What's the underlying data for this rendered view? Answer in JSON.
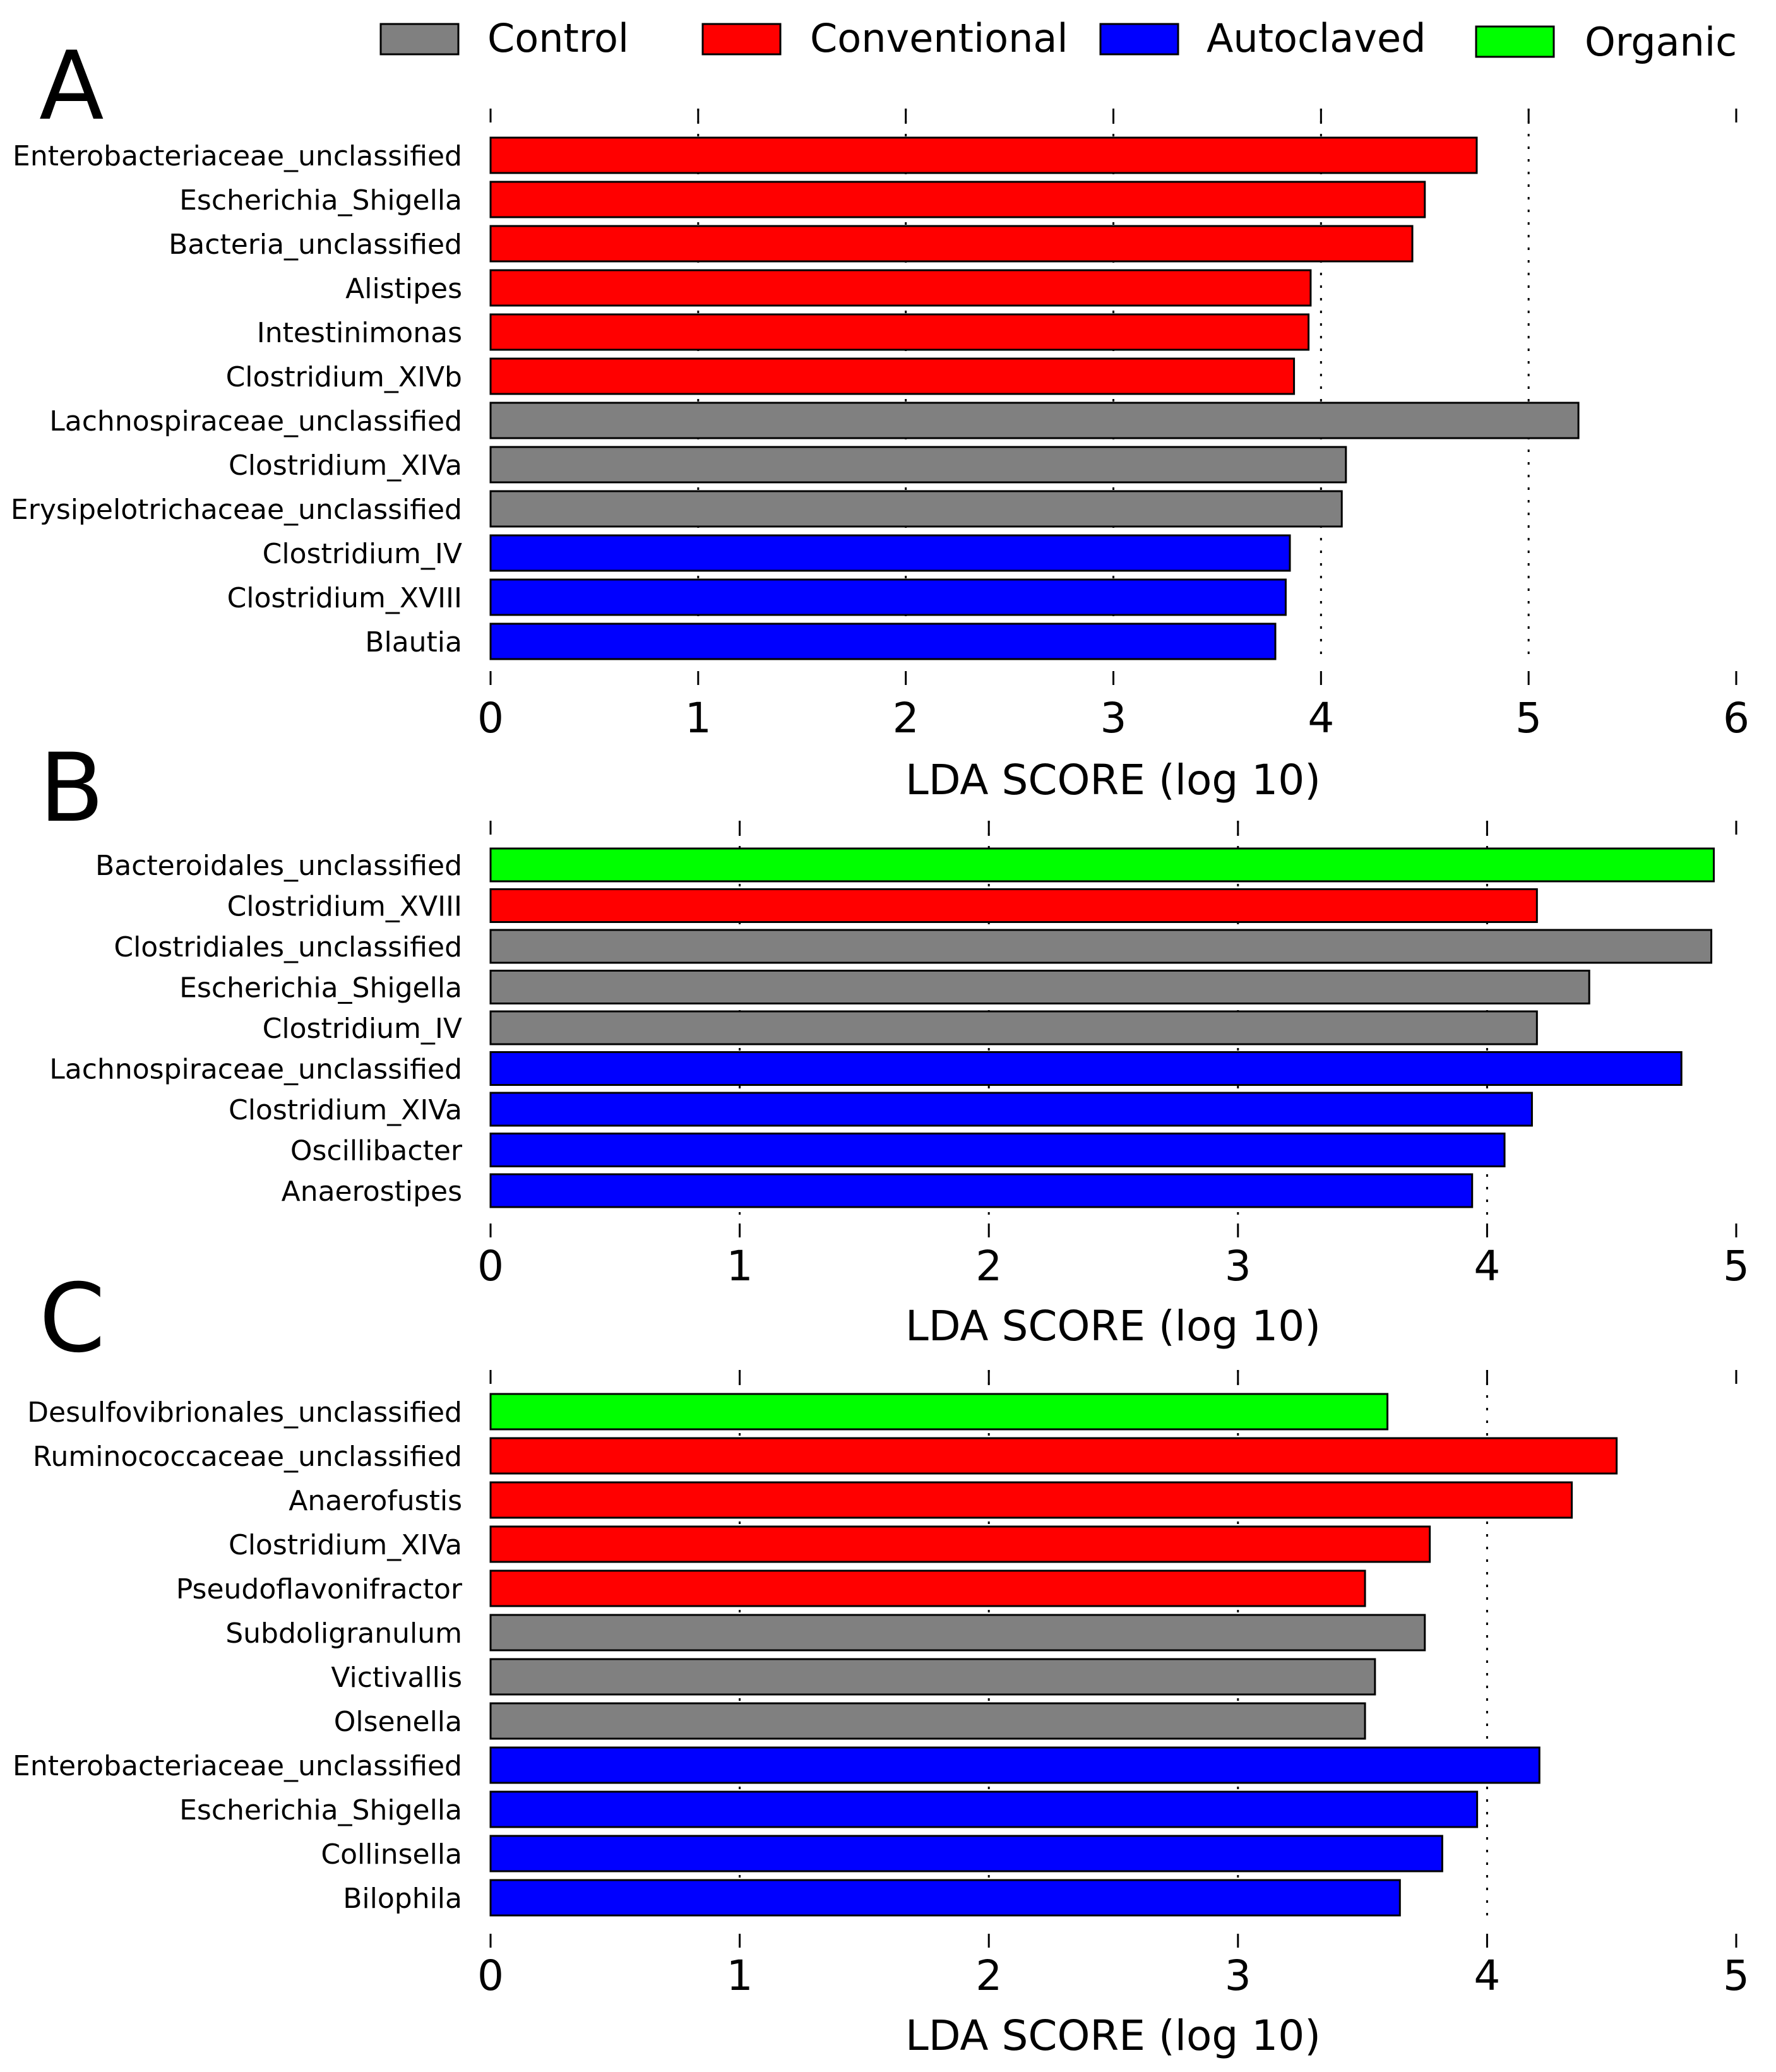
{
  "colors": {
    "Control": "#808080",
    "Conventional": "#ff0000",
    "Autoclaved": "#0000ff",
    "Organic": "#00ff00"
  },
  "legend": {
    "items": [
      {
        "name": "Control",
        "color": "#808080"
      },
      {
        "name": "Conventional",
        "color": "#ff0000"
      },
      {
        "name": "Autoclaved",
        "color": "#0000ff"
      },
      {
        "name": "Organic",
        "color": "#00ff00"
      }
    ]
  },
  "chart_data": [
    {
      "panel": "A",
      "type": "bar",
      "orientation": "horizontal",
      "xlabel": "LDA SCORE (log 10)",
      "xlim": [
        0,
        6
      ],
      "ticks": [
        "0",
        "1",
        "2",
        "3",
        "4",
        "5",
        "6"
      ],
      "bars": [
        {
          "label": "Enterobacteriaceae_unclassified",
          "value": 4.75,
          "group": "Conventional"
        },
        {
          "label": "Escherichia_Shigella",
          "value": 4.5,
          "group": "Conventional"
        },
        {
          "label": "Bacteria_unclassified",
          "value": 4.44,
          "group": "Conventional"
        },
        {
          "label": "Alistipes",
          "value": 3.95,
          "group": "Conventional"
        },
        {
          "label": "Intestinimonas",
          "value": 3.94,
          "group": "Conventional"
        },
        {
          "label": "Clostridium_XIVb",
          "value": 3.87,
          "group": "Conventional"
        },
        {
          "label": "Lachnospiraceae_unclassified",
          "value": 5.24,
          "group": "Control"
        },
        {
          "label": "Clostridium_XIVa",
          "value": 4.12,
          "group": "Control"
        },
        {
          "label": "Erysipelotrichaceae_unclassified",
          "value": 4.1,
          "group": "Control"
        },
        {
          "label": "Clostridium_IV",
          "value": 3.85,
          "group": "Autoclaved"
        },
        {
          "label": "Clostridium_XVIII",
          "value": 3.83,
          "group": "Autoclaved"
        },
        {
          "label": "Blautia",
          "value": 3.78,
          "group": "Autoclaved"
        }
      ]
    },
    {
      "panel": "B",
      "type": "bar",
      "orientation": "horizontal",
      "xlabel": "LDA SCORE (log 10)",
      "xlim": [
        0,
        5
      ],
      "ticks": [
        "0",
        "1",
        "2",
        "3",
        "4",
        "5"
      ],
      "bars": [
        {
          "label": "Bacteroidales_unclassified",
          "value": 4.91,
          "group": "Organic"
        },
        {
          "label": "Clostridium_XVIII",
          "value": 4.2,
          "group": "Conventional"
        },
        {
          "label": "Clostridiales_unclassified",
          "value": 4.9,
          "group": "Control"
        },
        {
          "label": "Escherichia_Shigella",
          "value": 4.41,
          "group": "Control"
        },
        {
          "label": "Clostridium_IV",
          "value": 4.2,
          "group": "Control"
        },
        {
          "label": "Lachnospiraceae_unclassified",
          "value": 4.78,
          "group": "Autoclaved"
        },
        {
          "label": "Clostridium_XIVa",
          "value": 4.18,
          "group": "Autoclaved"
        },
        {
          "label": "Oscillibacter",
          "value": 4.07,
          "group": "Autoclaved"
        },
        {
          "label": "Anaerostipes",
          "value": 3.94,
          "group": "Autoclaved"
        }
      ]
    },
    {
      "panel": "C",
      "type": "bar",
      "orientation": "horizontal",
      "xlabel": "LDA SCORE (log 10)",
      "xlim": [
        0,
        5
      ],
      "ticks": [
        "0",
        "1",
        "2",
        "3",
        "4",
        "5"
      ],
      "bars": [
        {
          "label": "Desulfovibrionales_unclassified",
          "value": 3.6,
          "group": "Organic"
        },
        {
          "label": "Ruminococcaceae_unclassified",
          "value": 4.52,
          "group": "Conventional"
        },
        {
          "label": "Anaerofustis",
          "value": 4.34,
          "group": "Conventional"
        },
        {
          "label": "Clostridium_XIVa",
          "value": 3.77,
          "group": "Conventional"
        },
        {
          "label": "Pseudoflavonifractor",
          "value": 3.51,
          "group": "Conventional"
        },
        {
          "label": "Subdoligranulum",
          "value": 3.75,
          "group": "Control"
        },
        {
          "label": "Victivallis",
          "value": 3.55,
          "group": "Control"
        },
        {
          "label": "Olsenella",
          "value": 3.51,
          "group": "Control"
        },
        {
          "label": "Enterobacteriaceae_unclassified",
          "value": 4.21,
          "group": "Autoclaved"
        },
        {
          "label": "Escherichia_Shigella",
          "value": 3.96,
          "group": "Autoclaved"
        },
        {
          "label": "Collinsella",
          "value": 3.82,
          "group": "Autoclaved"
        },
        {
          "label": "Bilophila",
          "value": 3.65,
          "group": "Autoclaved"
        }
      ]
    }
  ]
}
